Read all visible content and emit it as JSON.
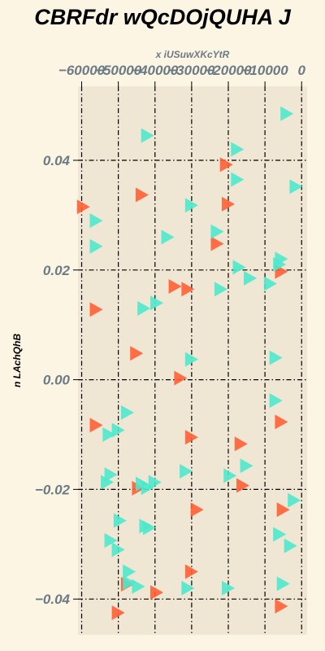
{
  "chart_data": {
    "type": "scatter",
    "title": "CBRFdr wQcDOjQUHA J",
    "xlabel": "x iUSuwXKcYtR",
    "ylabel": "n LAchQhB",
    "x_axis_position": "top",
    "grid": true,
    "xlim": [
      -61000,
      1500
    ],
    "ylim": [
      -0.0465,
      0.0535
    ],
    "x_ticks": [
      -60000,
      -50000,
      -40000,
      -30000,
      -20000,
      -10000,
      0
    ],
    "x_tick_labels": [
      "−60000",
      "−50000",
      "−40000",
      "−30000",
      "−20000",
      "−10000",
      "0"
    ],
    "y_ticks": [
      -0.04,
      -0.02,
      0.0,
      0.02,
      0.04
    ],
    "y_tick_labels": [
      "−0.04",
      "−0.02",
      "0.00",
      "0.02",
      "0.04"
    ],
    "colors": {
      "background": "#fdf5e4",
      "plot_area": "#efe6d4",
      "orange": "#ff5f34",
      "teal": "#4be9cc",
      "axis_text": "#6b7b84"
    },
    "series": [
      {
        "color": "#ff5f34",
        "marker": "triangle-right",
        "points": [
          [
            -59500,
            0.0315
          ],
          [
            -56000,
            0.0128
          ],
          [
            -56000,
            -0.0083
          ],
          [
            -50000,
            -0.0425
          ],
          [
            -47500,
            -0.0373
          ],
          [
            -44500,
            -0.0198
          ],
          [
            -45000,
            0.0048
          ],
          [
            -43500,
            0.0337
          ],
          [
            -39500,
            -0.0388
          ],
          [
            -34500,
            0.017
          ],
          [
            -31000,
            0.0165
          ],
          [
            -33000,
            0.0003
          ],
          [
            -30000,
            -0.0105
          ],
          [
            -30000,
            -0.035
          ],
          [
            -28500,
            -0.0237
          ],
          [
            -23000,
            0.0248
          ],
          [
            -20500,
            0.0392
          ],
          [
            -20000,
            0.032
          ],
          [
            -16500,
            -0.0117
          ],
          [
            -16000,
            -0.0193
          ],
          [
            -5500,
            0.0197
          ],
          [
            -5500,
            -0.0077
          ],
          [
            -5000,
            -0.0237
          ],
          [
            -5500,
            -0.0413
          ]
        ]
      },
      {
        "color": "#4be9cc",
        "marker": "triangle-right",
        "points": [
          [
            -4000,
            0.0485
          ],
          [
            -42000,
            0.0445
          ],
          [
            -17500,
            0.042
          ],
          [
            -17500,
            0.0365
          ],
          [
            -1500,
            0.0352
          ],
          [
            -30000,
            0.0318
          ],
          [
            -56000,
            0.029
          ],
          [
            -23000,
            0.027
          ],
          [
            -36500,
            0.026
          ],
          [
            -56000,
            0.0243
          ],
          [
            -5500,
            0.022
          ],
          [
            -6000,
            0.021
          ],
          [
            -17000,
            0.0205
          ],
          [
            -14000,
            0.0185
          ],
          [
            -8500,
            0.0175
          ],
          [
            -22000,
            0.0165
          ],
          [
            -39500,
            0.014
          ],
          [
            -43000,
            0.013
          ],
          [
            -30000,
            0.0037
          ],
          [
            -7000,
            0.004
          ],
          [
            -7000,
            -0.0038
          ],
          [
            -47500,
            -0.006
          ],
          [
            -50000,
            -0.0092
          ],
          [
            -52500,
            -0.01
          ],
          [
            -15000,
            -0.0157
          ],
          [
            -31500,
            -0.0167
          ],
          [
            -52000,
            -0.0173
          ],
          [
            -19500,
            -0.0175
          ],
          [
            -53000,
            -0.0187
          ],
          [
            -40000,
            -0.0187
          ],
          [
            -43500,
            -0.019
          ],
          [
            -42000,
            -0.0197
          ],
          [
            -2000,
            -0.022
          ],
          [
            -49500,
            -0.0257
          ],
          [
            -41500,
            -0.027
          ],
          [
            -42500,
            -0.0267
          ],
          [
            -52000,
            -0.0293
          ],
          [
            -6000,
            -0.0282
          ],
          [
            -50000,
            -0.031
          ],
          [
            -3000,
            -0.0303
          ],
          [
            -47000,
            -0.035
          ],
          [
            -47000,
            -0.037
          ],
          [
            -44500,
            -0.0377
          ],
          [
            -31000,
            -0.038
          ],
          [
            -20000,
            -0.038
          ],
          [
            -5000,
            -0.0372
          ]
        ]
      }
    ]
  }
}
